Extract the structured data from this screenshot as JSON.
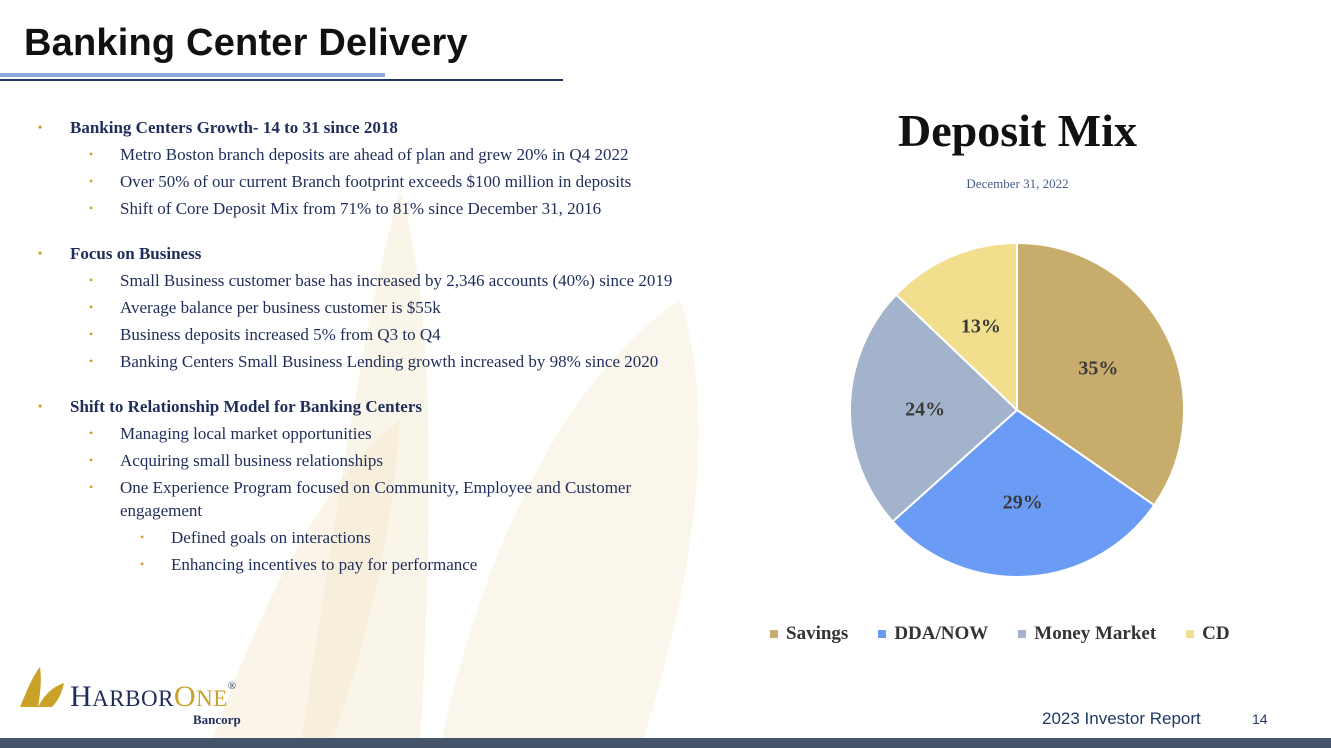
{
  "slide": {
    "title": "Banking Center Delivery",
    "page_number": "14",
    "footer": "2023 Investor Report"
  },
  "bullets": [
    {
      "heading": "Banking Centers Growth- 14 to 31 since 2018",
      "items": [
        {
          "text": "Metro Boston branch deposits are ahead of plan and grew 20% in Q4 2022"
        },
        {
          "text": "Over 50% of our current Branch footprint exceeds $100 million in deposits"
        },
        {
          "text": "Shift of Core Deposit Mix from 71% to 81% since December 31, 2016"
        }
      ]
    },
    {
      "heading": "Focus on Business",
      "items": [
        {
          "text": "Small Business customer base has increased by 2,346 accounts (40%) since 2019"
        },
        {
          "text": "Average balance per business customer is $55k"
        },
        {
          "text": "Business deposits increased 5% from Q3 to Q4"
        },
        {
          "text": "Banking Centers Small Business Lending growth increased by 98% since 2020"
        }
      ]
    },
    {
      "heading": "Shift to Relationship Model for Banking Centers",
      "items": [
        {
          "text": "Managing local market opportunities"
        },
        {
          "text": "Acquiring small business relationships"
        },
        {
          "text": "One Experience Program focused on Community, Employee and Customer engagement",
          "sub": [
            "Defined goals on interactions",
            "Enhancing incentives to pay for performance"
          ]
        }
      ]
    }
  ],
  "logo": {
    "name_part1": "H",
    "name_part2": "ARBOR",
    "name_part3": "O",
    "name_part4": "NE",
    "registered": "®",
    "subtitle": "Bancorp"
  },
  "chart_data": {
    "type": "pie",
    "title": "Deposit Mix",
    "subtitle": "December 31, 2022",
    "categories": [
      "Savings",
      "DDA/NOW",
      "Money Market",
      "CD"
    ],
    "values": [
      35,
      29,
      24,
      13
    ],
    "labels": [
      "35%",
      "29%",
      "24%",
      "13%"
    ],
    "colors": [
      "#c8ac6b",
      "#6a9cf6",
      "#a3b3cb",
      "#f2df8e"
    ],
    "legend_position": "bottom"
  },
  "colors": {
    "bullet_dot": "#c9a227",
    "text_navy": "#1f2d5a",
    "bottom_bar": "#44546a"
  }
}
